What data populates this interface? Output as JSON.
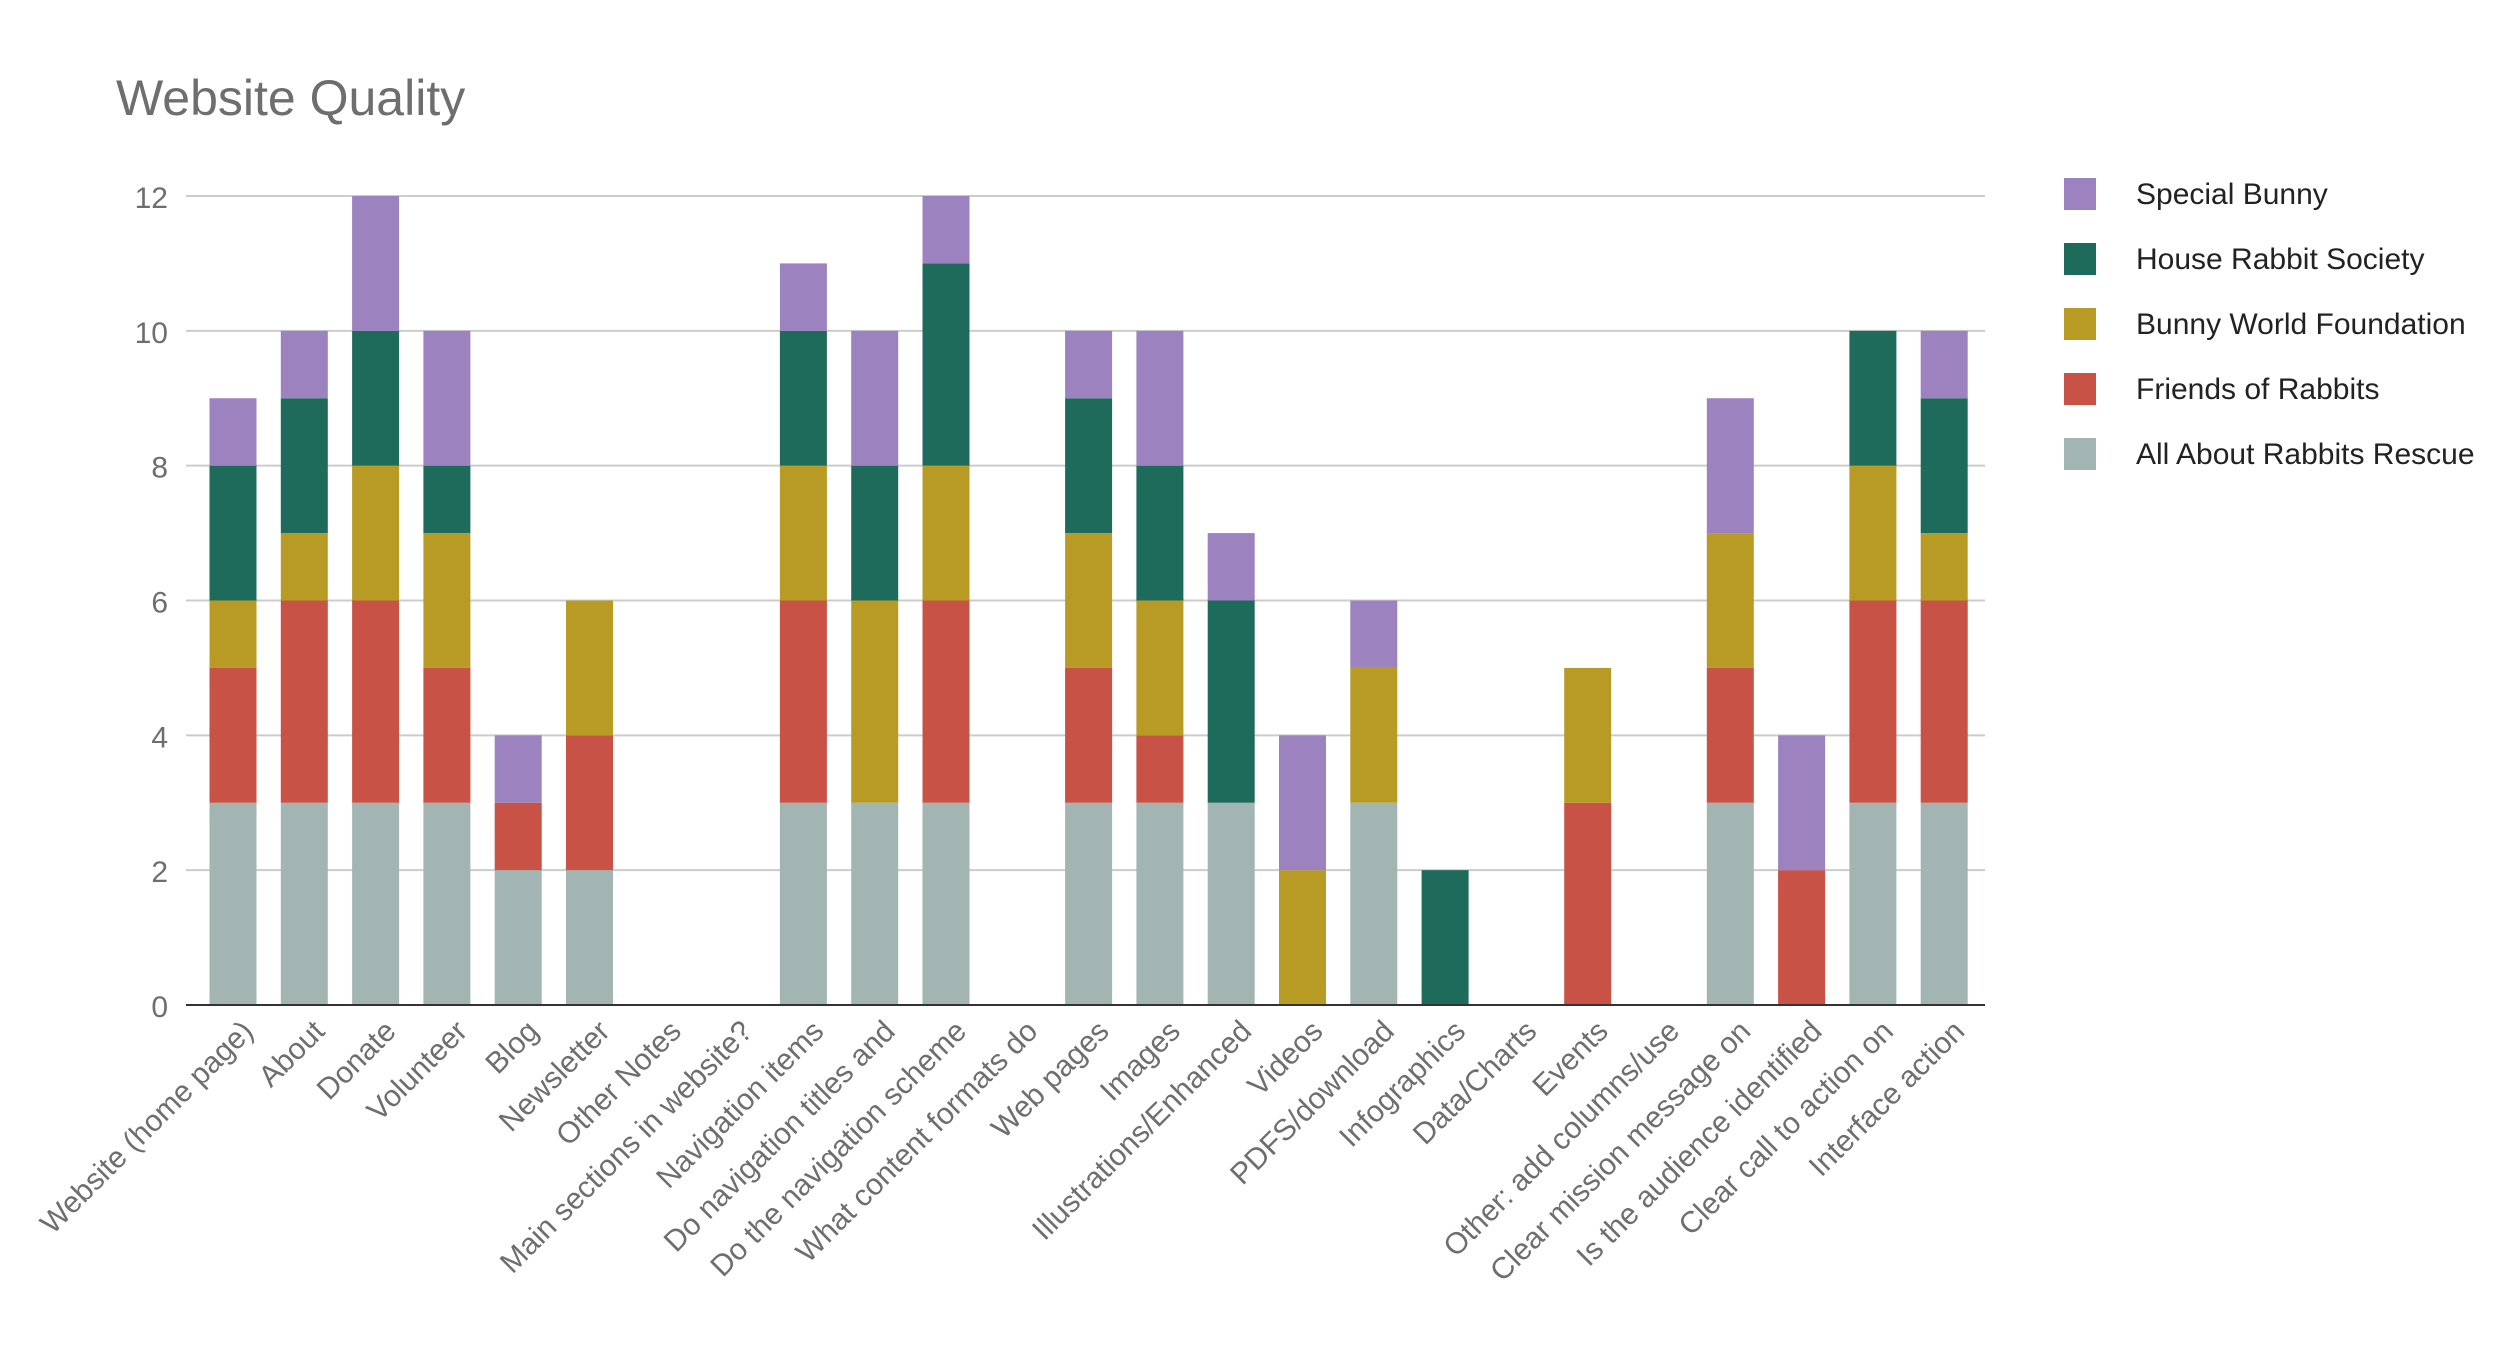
{
  "chart_data": {
    "type": "bar",
    "stacked": true,
    "title": "Website Quality",
    "xlabel": "",
    "ylabel": "",
    "ylim": [
      0,
      12
    ],
    "yticks": [
      0,
      2,
      4,
      6,
      8,
      10,
      12
    ],
    "grid": true,
    "legend_position": "right",
    "categories": [
      "Website (home page)",
      "About",
      "Donate",
      "Volunteer",
      "Blog",
      "Newsletter",
      "Other Notes",
      "Main sections in website?",
      "Navigation items",
      "Do navigation titles and",
      "Do the navigation scheme",
      "What content formats do",
      "Web pages",
      "Images",
      "Illustrations/Enhanced",
      "Videos",
      "PDFS/download",
      "Infographics",
      "Data/Charts",
      "Events",
      "Other: add columns/use",
      "Clear mission message on",
      "Is the audience identified",
      "Clear call to action on",
      "Interface action"
    ],
    "series": [
      {
        "name": "All About Rabbits Rescue",
        "color": "#a2b5b3",
        "values": [
          3,
          3,
          3,
          3,
          2,
          2,
          0,
          0,
          3,
          3,
          3,
          0,
          3,
          3,
          3,
          0,
          3,
          0,
          0,
          0,
          0,
          3,
          0,
          3,
          3
        ]
      },
      {
        "name": "Friends of Rabbits",
        "color": "#c85245",
        "values": [
          2,
          3,
          3,
          2,
          1,
          2,
          0,
          0,
          3,
          0,
          3,
          0,
          2,
          1,
          0,
          0,
          0,
          0,
          0,
          3,
          0,
          2,
          2,
          3,
          3
        ]
      },
      {
        "name": "Bunny World Foundation",
        "color": "#b89b25",
        "values": [
          1,
          1,
          2,
          2,
          0,
          2,
          0,
          0,
          2,
          3,
          2,
          0,
          2,
          2,
          0,
          2,
          2,
          0,
          0,
          2,
          0,
          2,
          0,
          2,
          1
        ]
      },
      {
        "name": "House Rabbit Society",
        "color": "#1e6b5c",
        "values": [
          2,
          2,
          2,
          1,
          0,
          0,
          0,
          0,
          2,
          2,
          3,
          0,
          2,
          2,
          3,
          0,
          0,
          2,
          0,
          0,
          0,
          0,
          0,
          2,
          2
        ]
      },
      {
        "name": "Special Bunny",
        "color": "#9c82be",
        "values": [
          1,
          1,
          2,
          2,
          1,
          0,
          0,
          0,
          1,
          2,
          1,
          0,
          1,
          2,
          1,
          2,
          1,
          0,
          0,
          0,
          0,
          2,
          2,
          0,
          1
        ]
      }
    ]
  },
  "legend_order": [
    "Special Bunny",
    "House Rabbit Society",
    "Bunny World Foundation",
    "Friends of Rabbits",
    "All About Rabbits Rescue"
  ],
  "colors": {
    "title": "#6e6e6e",
    "axis_text": "#6e6e6e",
    "legend_text": "#222222",
    "grid": "#cccccc",
    "baseline": "#333333"
  }
}
